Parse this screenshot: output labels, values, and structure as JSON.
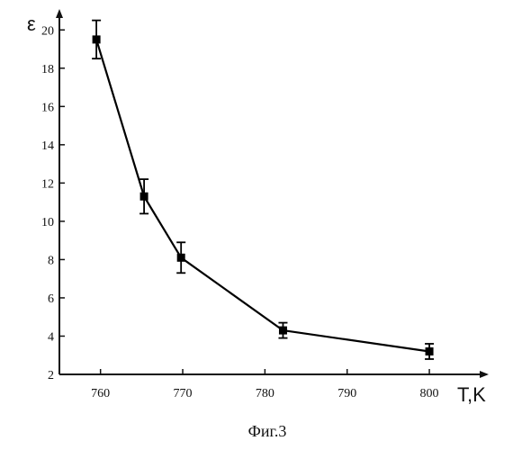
{
  "chart_data": {
    "type": "line",
    "x": [
      759.5,
      765.3,
      769.8,
      782.2,
      800
    ],
    "series": [
      {
        "values": [
          19.5,
          11.3,
          8.1,
          4.3,
          3.2
        ],
        "error": [
          1.0,
          0.9,
          0.8,
          0.4,
          0.4
        ],
        "color": "#000000",
        "marker": "square"
      }
    ],
    "xlabel": "T,K",
    "ylabel": "ε",
    "xlim": [
      755,
      807
    ],
    "ylim": [
      2,
      21
    ],
    "xticks": [
      760,
      770,
      780,
      790,
      800
    ],
    "yticks": [
      2,
      4,
      6,
      8,
      10,
      12,
      14,
      16,
      18,
      20
    ],
    "grid": false,
    "caption": "Фиг.3"
  }
}
